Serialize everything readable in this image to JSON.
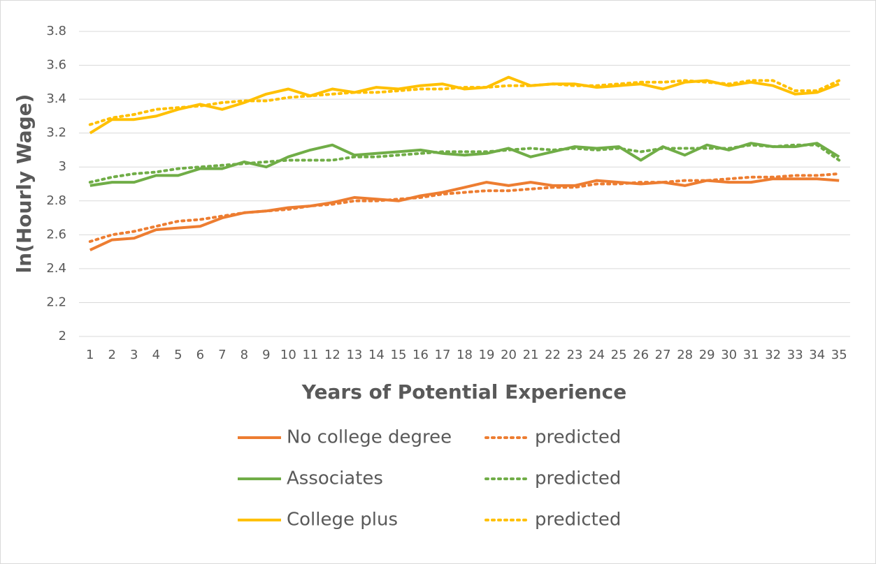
{
  "chart_data": {
    "type": "line",
    "ylabel": "ln(Hourly Wage)",
    "xlabel": "Years of Potential Experience",
    "categories": [
      "1",
      "2",
      "3",
      "4",
      "5",
      "6",
      "7",
      "8",
      "9",
      "10",
      "11",
      "12",
      "13",
      "14",
      "15",
      "16",
      "17",
      "18",
      "19",
      "20",
      "21",
      "22",
      "23",
      "24",
      "25",
      "26",
      "27",
      "28",
      "29",
      "30",
      "31",
      "32",
      "33",
      "34",
      "35"
    ],
    "ylim": [
      2,
      3.8
    ],
    "yticks": [
      2,
      2.2,
      2.4,
      2.6,
      2.8,
      3,
      3.2,
      3.4,
      3.6,
      3.8
    ],
    "grid": true,
    "legend": "bottom",
    "series": [
      {
        "name": "No college degree",
        "color": "#ed7d31",
        "dash": "solid",
        "values": [
          2.51,
          2.57,
          2.58,
          2.63,
          2.64,
          2.65,
          2.7,
          2.73,
          2.74,
          2.76,
          2.77,
          2.79,
          2.82,
          2.81,
          2.8,
          2.83,
          2.85,
          2.88,
          2.91,
          2.89,
          2.91,
          2.89,
          2.89,
          2.92,
          2.91,
          2.9,
          2.91,
          2.89,
          2.92,
          2.91,
          2.91,
          2.93,
          2.93,
          2.93,
          2.92
        ]
      },
      {
        "name": "predicted",
        "color": "#ed7d31",
        "dash": "dotted",
        "values": [
          2.56,
          2.6,
          2.62,
          2.65,
          2.68,
          2.69,
          2.71,
          2.73,
          2.74,
          2.75,
          2.77,
          2.78,
          2.8,
          2.8,
          2.81,
          2.82,
          2.84,
          2.85,
          2.86,
          2.86,
          2.87,
          2.88,
          2.88,
          2.9,
          2.9,
          2.91,
          2.91,
          2.92,
          2.92,
          2.93,
          2.94,
          2.94,
          2.95,
          2.95,
          2.96
        ]
      },
      {
        "name": "Associates",
        "color": "#70ad47",
        "dash": "solid",
        "values": [
          2.89,
          2.91,
          2.91,
          2.95,
          2.95,
          2.99,
          2.99,
          3.03,
          3.0,
          3.06,
          3.1,
          3.13,
          3.07,
          3.08,
          3.09,
          3.1,
          3.08,
          3.07,
          3.08,
          3.11,
          3.06,
          3.09,
          3.12,
          3.11,
          3.12,
          3.04,
          3.12,
          3.07,
          3.13,
          3.1,
          3.14,
          3.12,
          3.12,
          3.14,
          3.06
        ]
      },
      {
        "name": "predicted",
        "color": "#70ad47",
        "dash": "dotted",
        "values": [
          2.91,
          2.94,
          2.96,
          2.97,
          2.99,
          3.0,
          3.01,
          3.02,
          3.03,
          3.04,
          3.04,
          3.04,
          3.06,
          3.06,
          3.07,
          3.08,
          3.09,
          3.09,
          3.09,
          3.1,
          3.11,
          3.1,
          3.11,
          3.1,
          3.11,
          3.09,
          3.11,
          3.11,
          3.11,
          3.11,
          3.13,
          3.12,
          3.13,
          3.13,
          3.04
        ]
      },
      {
        "name": "College plus",
        "color": "#ffc000",
        "dash": "solid",
        "values": [
          3.2,
          3.28,
          3.28,
          3.3,
          3.34,
          3.37,
          3.34,
          3.38,
          3.43,
          3.46,
          3.42,
          3.46,
          3.44,
          3.47,
          3.46,
          3.48,
          3.49,
          3.46,
          3.47,
          3.53,
          3.48,
          3.49,
          3.49,
          3.47,
          3.48,
          3.49,
          3.46,
          3.5,
          3.51,
          3.48,
          3.5,
          3.48,
          3.43,
          3.44,
          3.49
        ]
      },
      {
        "name": "predicted",
        "color": "#ffc000",
        "dash": "dotted",
        "values": [
          3.25,
          3.29,
          3.31,
          3.34,
          3.35,
          3.36,
          3.38,
          3.39,
          3.39,
          3.41,
          3.42,
          3.43,
          3.44,
          3.44,
          3.45,
          3.46,
          3.46,
          3.47,
          3.47,
          3.48,
          3.48,
          3.49,
          3.48,
          3.48,
          3.49,
          3.5,
          3.5,
          3.51,
          3.5,
          3.49,
          3.51,
          3.51,
          3.45,
          3.45,
          3.51
        ]
      }
    ]
  }
}
